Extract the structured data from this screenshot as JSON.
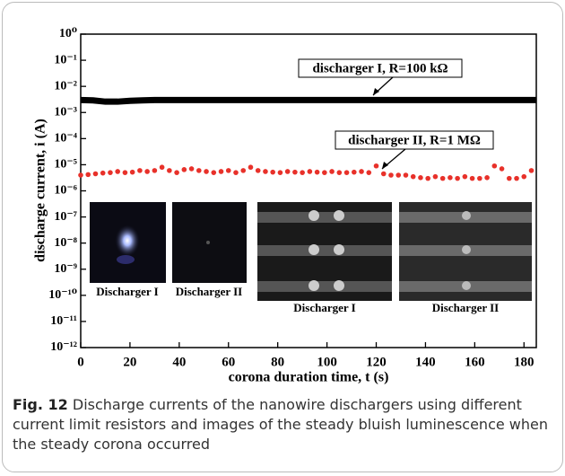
{
  "chart_data": {
    "type": "scatter",
    "xlabel": "corona duration time, t (s)",
    "ylabel": "discharge current, i (A)",
    "xlim": [
      0,
      185
    ],
    "xticks": [
      0,
      20,
      40,
      60,
      80,
      100,
      120,
      140,
      160,
      180
    ],
    "ylim": [
      1e-12,
      1
    ],
    "yscale": "log",
    "yticks": [
      {
        "value": 1,
        "label": "10⁰"
      },
      {
        "value": 0.1,
        "label": "10⁻¹"
      },
      {
        "value": 0.01,
        "label": "10⁻²"
      },
      {
        "value": 0.001,
        "label": "10⁻³"
      },
      {
        "value": 0.0001,
        "label": "10⁻⁴"
      },
      {
        "value": 1e-05,
        "label": "10⁻⁵"
      },
      {
        "value": 1e-06,
        "label": "10⁻⁶"
      },
      {
        "value": 1e-07,
        "label": "10⁻⁷"
      },
      {
        "value": 1e-08,
        "label": "10⁻⁸"
      },
      {
        "value": 1e-09,
        "label": "10⁻⁹"
      },
      {
        "value": 1e-10,
        "label": "10⁻¹⁰"
      },
      {
        "value": 1e-11,
        "label": "10⁻¹¹"
      },
      {
        "value": 1e-12,
        "label": "10⁻¹²"
      }
    ],
    "series": [
      {
        "style": "line",
        "color": "#000000",
        "x": [
          0,
          5,
          10,
          15,
          20,
          25,
          30,
          35,
          40,
          45,
          50,
          55,
          60,
          65,
          70,
          75,
          80,
          85,
          90,
          95,
          100,
          105,
          110,
          115,
          120,
          125,
          130,
          135,
          140,
          145,
          150,
          155,
          160,
          165,
          170,
          175,
          180,
          185
        ],
        "values": [
          0.003,
          0.0029,
          0.0026,
          0.0026,
          0.0028,
          0.0029,
          0.003,
          0.003,
          0.003,
          0.003,
          0.003,
          0.003,
          0.003,
          0.003,
          0.003,
          0.003,
          0.003,
          0.003,
          0.003,
          0.003,
          0.003,
          0.003,
          0.003,
          0.003,
          0.003,
          0.003,
          0.003,
          0.003,
          0.003,
          0.003,
          0.003,
          0.003,
          0.003,
          0.003,
          0.003,
          0.003,
          0.003,
          0.003
        ]
      },
      {
        "style": "points",
        "color": "#e8312a",
        "x": [
          0,
          3,
          6,
          9,
          12,
          15,
          18,
          21,
          24,
          27,
          30,
          33,
          36,
          39,
          42,
          45,
          48,
          51,
          54,
          57,
          60,
          63,
          66,
          69,
          72,
          75,
          78,
          81,
          84,
          87,
          90,
          93,
          96,
          99,
          102,
          105,
          108,
          111,
          114,
          117,
          120,
          123,
          126,
          129,
          132,
          135,
          138,
          141,
          144,
          147,
          150,
          153,
          156,
          159,
          162,
          165,
          168,
          171,
          174,
          177,
          180,
          183
        ],
        "values": [
          4e-06,
          4.2e-06,
          4.5e-06,
          4.8e-06,
          5e-06,
          5.5e-06,
          5e-06,
          5.2e-06,
          6e-06,
          5.5e-06,
          6e-06,
          8e-06,
          6e-06,
          5e-06,
          6.5e-06,
          7e-06,
          6e-06,
          5.5e-06,
          5e-06,
          5.5e-06,
          6e-06,
          5e-06,
          6e-06,
          8e-06,
          6e-06,
          5.5e-06,
          5.2e-06,
          5e-06,
          5.5e-06,
          5.2e-06,
          5e-06,
          5.5e-06,
          5.2e-06,
          5e-06,
          5.5e-06,
          5e-06,
          5e-06,
          5.2e-06,
          5.5e-06,
          5e-06,
          9e-06,
          4.5e-06,
          4e-06,
          4e-06,
          4e-06,
          3.5e-06,
          3.2e-06,
          3e-06,
          3.5e-06,
          3e-06,
          3.2e-06,
          3e-06,
          3.5e-06,
          3e-06,
          3e-06,
          3.2e-06,
          9e-06,
          7e-06,
          3e-06,
          3e-06,
          3.5e-06,
          6e-06
        ]
      }
    ],
    "annotations": [
      "discharger I, R=100 kΩ",
      "discharger II, R=1 MΩ"
    ],
    "inset_labels": [
      "Discharger I",
      "Discharger II",
      "Discharger I",
      "Discharger II"
    ],
    "caption": {
      "label": "Fig. 12",
      "text": "Discharge currents of the nanowire dischargers using different current limit resistors and images of the steady bluish luminescence when the steady corona occurred"
    }
  }
}
